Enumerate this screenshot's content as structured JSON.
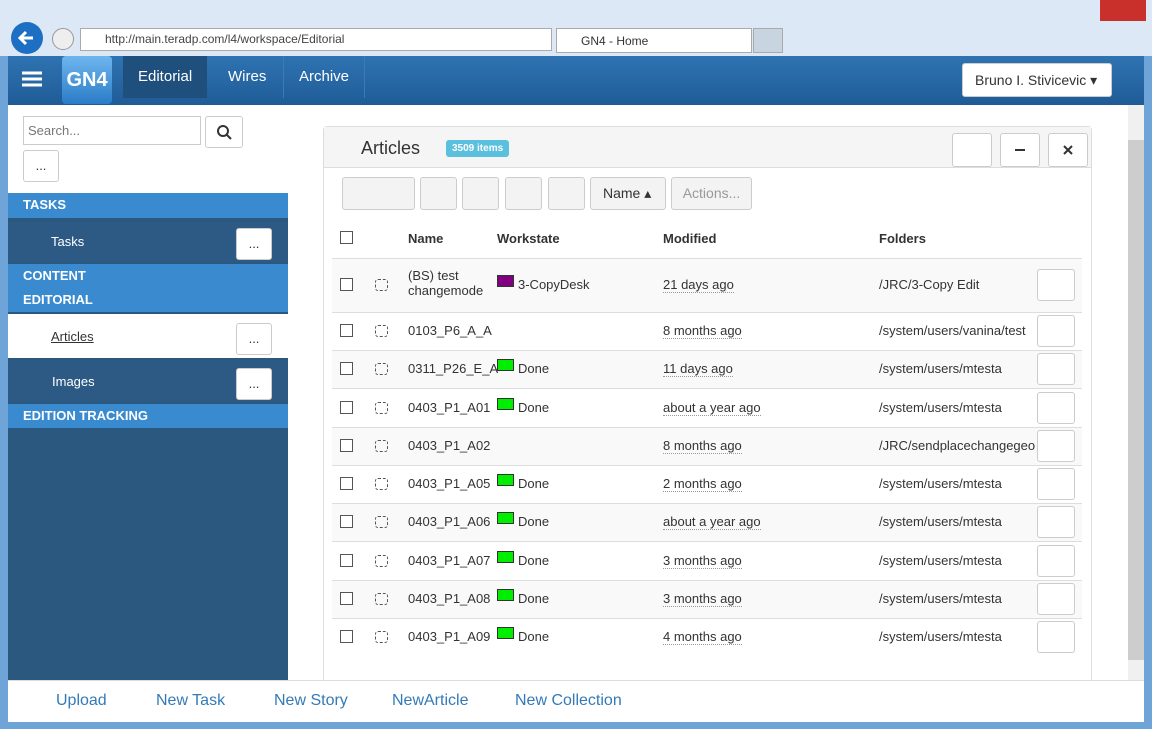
{
  "browser": {
    "url": "http://main.teradp.com/l4/workspace/Editorial",
    "tab_title": "GN4 - Home"
  },
  "navbar": {
    "logo": "GN4",
    "tabs": [
      "Editorial",
      "Wires",
      "Archive"
    ],
    "user": "Bruno I. Stivicevic"
  },
  "sidebar": {
    "search_placeholder": "Search...",
    "search_more": "...",
    "tasks_header": "TASKS",
    "tasks": {
      "label": "Tasks",
      "more": "..."
    },
    "content_header": "CONTENT",
    "editorial_header": "EDITORIAL",
    "articles": {
      "label": "Articles",
      "more": "..."
    },
    "images": {
      "label": "Images",
      "more": "..."
    },
    "edition_header": "EDITION TRACKING"
  },
  "panel": {
    "title": "Articles",
    "count": "3509 items",
    "sort": "Name",
    "actions": "Actions...",
    "columns": [
      "Name",
      "Workstate",
      "Modified",
      "Folders"
    ],
    "rows": [
      {
        "name": "(BS) test changemode",
        "workstate": {
          "label": "3-CopyDesk",
          "color": "#800080"
        },
        "modified": "21 days ago",
        "folder": "/JRC/3-Copy Edit"
      },
      {
        "name": "0103_P6_A_A",
        "modified": "8 months ago",
        "folder": "/system/users/vanina/test"
      },
      {
        "name": "0311_P26_E_A",
        "workstate": {
          "label": "Done",
          "color": "#00ee00"
        },
        "modified": "11 days ago",
        "folder": "/system/users/mtesta"
      },
      {
        "name": "0403_P1_A01",
        "workstate": {
          "label": "Done",
          "color": "#00ee00"
        },
        "modified": "about a year ago",
        "folder": "/system/users/mtesta"
      },
      {
        "name": "0403_P1_A02",
        "modified": "8 months ago",
        "folder": "/JRC/sendplacechangegeo"
      },
      {
        "name": "0403_P1_A05",
        "workstate": {
          "label": "Done",
          "color": "#00ee00"
        },
        "modified": "2 months ago",
        "folder": "/system/users/mtesta"
      },
      {
        "name": "0403_P1_A06",
        "workstate": {
          "label": "Done",
          "color": "#00ee00"
        },
        "modified": "about a year ago",
        "folder": "/system/users/mtesta"
      },
      {
        "name": "0403_P1_A07",
        "workstate": {
          "label": "Done",
          "color": "#00ee00"
        },
        "modified": "3 months ago",
        "folder": "/system/users/mtesta"
      },
      {
        "name": "0403_P1_A08",
        "workstate": {
          "label": "Done",
          "color": "#00ee00"
        },
        "modified": "3 months ago",
        "folder": "/system/users/mtesta"
      },
      {
        "name": "0403_P1_A09",
        "workstate": {
          "label": "Done",
          "color": "#00ee00"
        },
        "modified": "4 months ago",
        "folder": "/system/users/mtesta"
      }
    ]
  },
  "footer": {
    "links": [
      "Upload",
      "New Task",
      "New Story",
      "NewArticle",
      "New Collection"
    ]
  }
}
